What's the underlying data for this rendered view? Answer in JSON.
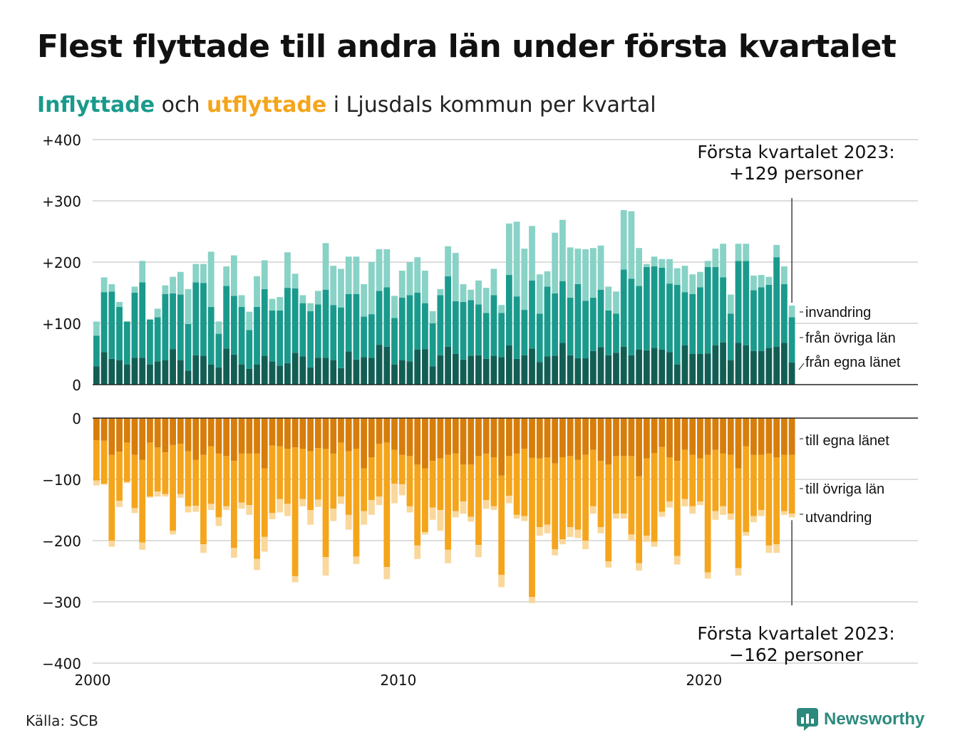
{
  "title": "Flest flyttade till andra län under första kvartalet",
  "subtitle": {
    "in_word": "Inflyttade",
    "mid1": " och ",
    "out_word": "utflyttade",
    "mid2": " i Ljusdals kommun per kvartal"
  },
  "source": "Källa: SCB",
  "logo_text": "Newsworthy",
  "colors": {
    "in_own": "#125e55",
    "in_other": "#1a9a8c",
    "in_immig": "#88d2c6",
    "out_own": "#d67d0b",
    "out_other": "#f4a51c",
    "out_emig": "#fad79a",
    "grid": "#dddddd",
    "axis": "#222222"
  },
  "chart_data": {
    "type": "bar",
    "stacked": true,
    "x_start": 2000.0,
    "x_step": 0.25,
    "xlim": [
      2000,
      2027
    ],
    "x_ticks": [
      2000,
      2010,
      2020
    ],
    "x_tick_labels": [
      "2000",
      "2010",
      "2020"
    ],
    "y_ticks": [
      400,
      300,
      200,
      100,
      0,
      -100,
      -200,
      -300,
      -400
    ],
    "y_tick_labels": [
      "+400",
      "+300",
      "+200",
      "+100",
      "0",
      "−100",
      "−200",
      "−300",
      "−400"
    ],
    "panels": [
      {
        "name": "inflyttade",
        "ylim": [
          0,
          400
        ],
        "series": [
          {
            "name": "från egna länet",
            "values": [
              30,
              53,
              42,
              40,
              33,
              44,
              44,
              33,
              38,
              40,
              58,
              40,
              23,
              48,
              47,
              33,
              28,
              59,
              49,
              33,
              26,
              33,
              47,
              38,
              31,
              35,
              52,
              46,
              28,
              44,
              44,
              40,
              27,
              54,
              41,
              45,
              44,
              65,
              62,
              33,
              40,
              38,
              57,
              58,
              30,
              48,
              62,
              50,
              41,
              47,
              48,
              42,
              47,
              45,
              64,
              42,
              48,
              59,
              37,
              46,
              47,
              68,
              48,
              43,
              43,
              55,
              61,
              48,
              52,
              62,
              48,
              57,
              56,
              60,
              57,
              53,
              33,
              64,
              50,
              50,
              51,
              64,
              69,
              40,
              68,
              64,
              55,
              55,
              60,
              62,
              68,
              36
            ]
          },
          {
            "name": "från övriga län",
            "values": [
              50,
              98,
              110,
              87,
              70,
              106,
              123,
              73,
              72,
              108,
              91,
              107,
              76,
              119,
              119,
              94,
              55,
              102,
              96,
              94,
              63,
              94,
              109,
              83,
              90,
              123,
              105,
              87,
              92,
              87,
              111,
              90,
              99,
              94,
              107,
              66,
              71,
              88,
              97,
              76,
              102,
              108,
              93,
              75,
              70,
              98,
              115,
              86,
              94,
              91,
              83,
              75,
              99,
              72,
              115,
              102,
              74,
              111,
              79,
              114,
              102,
              101,
              94,
              121,
              94,
              87,
              94,
              73,
              64,
              126,
              125,
              104,
              136,
              133,
              134,
              112,
              130,
              87,
              98,
              109,
              141,
              128,
              106,
              76,
              134,
              138,
              99,
              104,
              103,
              146,
              96,
              74
            ]
          },
          {
            "name": "invandring",
            "values": [
              23,
              24,
              12,
              8,
              0,
              10,
              35,
              1,
              14,
              14,
              27,
              37,
              57,
              30,
              31,
              90,
              20,
              32,
              66,
              19,
              30,
              50,
              47,
              19,
              22,
              58,
              24,
              13,
              13,
              22,
              76,
              64,
              63,
              61,
              61,
              53,
              85,
              68,
              62,
              36,
              44,
              54,
              58,
              53,
              20,
              10,
              49,
              79,
              29,
              17,
              39,
              41,
              43,
              13,
              84,
              122,
              100,
              89,
              64,
              25,
              99,
              100,
              82,
              58,
              84,
              81,
              72,
              39,
              36,
              97,
              110,
              62,
              5,
              16,
              14,
              40,
              27,
              43,
              32,
              25,
              10,
              30,
              55,
              31,
              28,
              28,
              24,
              20,
              13,
              20,
              29,
              19
            ]
          }
        ]
      },
      {
        "name": "utflyttade",
        "ylim": [
          -400,
          0
        ],
        "series": [
          {
            "name": "till egna länet",
            "values": [
              -36,
              -37,
              -60,
              -55,
              -40,
              -60,
              -68,
              -40,
              -48,
              -56,
              -44,
              -42,
              -54,
              -68,
              -60,
              -46,
              -58,
              -62,
              -70,
              -58,
              -58,
              -58,
              -82,
              -45,
              -46,
              -50,
              -48,
              -50,
              -54,
              -49,
              -50,
              -58,
              -40,
              -54,
              -50,
              -82,
              -64,
              -42,
              -40,
              -52,
              -60,
              -62,
              -76,
              -82,
              -70,
              -66,
              -60,
              -58,
              -76,
              -76,
              -62,
              -58,
              -64,
              -94,
              -62,
              -58,
              -50,
              -65,
              -66,
              -64,
              -74,
              -64,
              -62,
              -68,
              -60,
              -52,
              -70,
              -76,
              -62,
              -62,
              -62,
              -95,
              -66,
              -57,
              -47,
              -64,
              -70,
              -52,
              -60,
              -66,
              -60,
              -52,
              -58,
              -60,
              -82,
              -46,
              -60,
              -60,
              -58,
              -64,
              -60,
              -60
            ]
          },
          {
            "name": "till övriga län",
            "values": [
              -66,
              -70,
              -140,
              -80,
              -64,
              -87,
              -135,
              -88,
              -72,
              -68,
              -140,
              -82,
              -90,
              -75,
              -146,
              -94,
              -104,
              -82,
              -142,
              -80,
              -84,
              -172,
              -112,
              -110,
              -86,
              -90,
              -210,
              -82,
              -96,
              -84,
              -177,
              -90,
              -88,
              -104,
              -176,
              -70,
              -70,
              -86,
              -203,
              -55,
              -48,
              -82,
              -132,
              -104,
              -76,
              -84,
              -155,
              -94,
              -60,
              -85,
              -145,
              -76,
              -80,
              -162,
              -65,
              -100,
              -110,
              -227,
              -112,
              -110,
              -140,
              -134,
              -116,
              -114,
              -140,
              -92,
              -108,
              -158,
              -94,
              -94,
              -128,
              -142,
              -126,
              -145,
              -106,
              -72,
              -155,
              -80,
              -84,
              -70,
              -192,
              -100,
              -86,
              -96,
              -163,
              -140,
              -100,
              -90,
              -150,
              -142,
              -92,
              -96
            ]
          },
          {
            "name": "utvandring",
            "values": [
              -8,
              -2,
              -10,
              -10,
              -2,
              -8,
              -12,
              -2,
              -8,
              -4,
              -6,
              -6,
              -10,
              -10,
              -14,
              -10,
              -14,
              -6,
              -16,
              -10,
              -16,
              -18,
              -24,
              -10,
              -22,
              -20,
              -10,
              -12,
              -24,
              -12,
              -30,
              -20,
              -12,
              -24,
              -12,
              -22,
              -24,
              -14,
              -20,
              -32,
              -18,
              -10,
              -22,
              -4,
              -20,
              -34,
              -22,
              -10,
              -20,
              -8,
              -20,
              -14,
              -6,
              -20,
              -12,
              -6,
              -8,
              -10,
              -14,
              -14,
              -10,
              -8,
              -16,
              -14,
              -14,
              -12,
              -10,
              -10,
              -8,
              -8,
              -10,
              -12,
              -10,
              -8,
              -8,
              -10,
              -14,
              -12,
              -12,
              -6,
              -10,
              -14,
              -14,
              -10,
              -12,
              -6,
              -10,
              -10,
              -12,
              -14,
              -6,
              -6
            ]
          }
        ]
      }
    ],
    "annotations": [
      {
        "panel": "inflyttade",
        "text": [
          "Första kvartalet 2023:",
          "+129 personer"
        ]
      },
      {
        "panel": "utflyttade",
        "text": [
          "Första kvartalet 2023:",
          "−162 personer"
        ]
      }
    ],
    "grid": true,
    "legend": "inline-right"
  }
}
